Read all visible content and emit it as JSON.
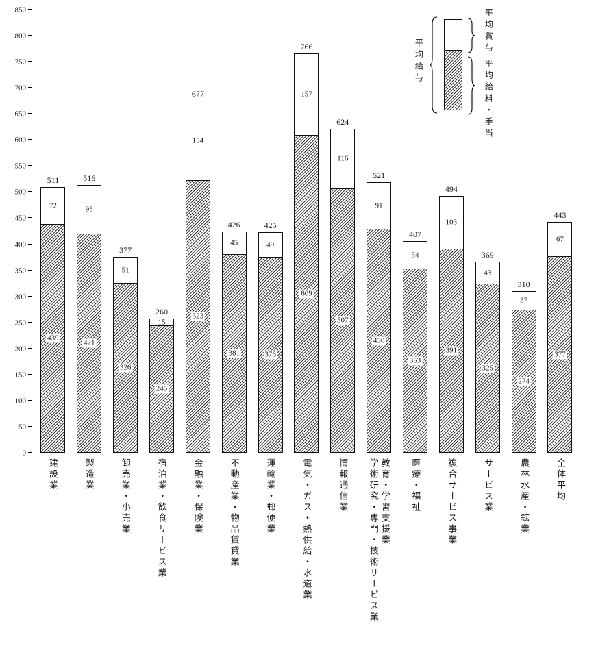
{
  "page": {
    "background": "#ffffff",
    "ink": "#1a1a1a"
  },
  "legend": {
    "total_label": "平均給与",
    "bonus_label": "平均賞与",
    "salary_label": "平均給料・手当"
  },
  "chart_data": {
    "type": "bar",
    "stacked": true,
    "title": "",
    "xlabel": "",
    "ylabel": "",
    "ylim": [
      0,
      850
    ],
    "ytick_step": 50,
    "grid": false,
    "legend_position": "top-right",
    "categories": [
      "建設業",
      "製造業",
      "卸売業・小売業",
      "宿泊業・飲食サービス業",
      "金融業・保険業",
      "不動産業・物品賃貸業",
      "運輸業・郵便業",
      "電気・ガス・熱供給・水道業",
      "情報通信業",
      "学術研究・専門・技術サービス業\n教育・学習支援業",
      "医療・福祉",
      "複合サービス事業",
      "サービス業",
      "農林水産・鉱業",
      "全体平均"
    ],
    "series": [
      {
        "name": "平均給料・手当",
        "pattern": "diagonal-hatch",
        "values": [
          439,
          421,
          326,
          245,
          523,
          381,
          376,
          609,
          507,
          430,
          353,
          391,
          325,
          274,
          377
        ]
      },
      {
        "name": "平均賞与",
        "pattern": "white",
        "values": [
          72,
          95,
          51,
          15,
          154,
          45,
          49,
          157,
          116,
          91,
          54,
          103,
          43,
          37,
          67
        ]
      }
    ],
    "totals": [
      511,
      516,
      377,
      260,
      677,
      426,
      425,
      766,
      624,
      521,
      407,
      494,
      369,
      310,
      443
    ]
  }
}
